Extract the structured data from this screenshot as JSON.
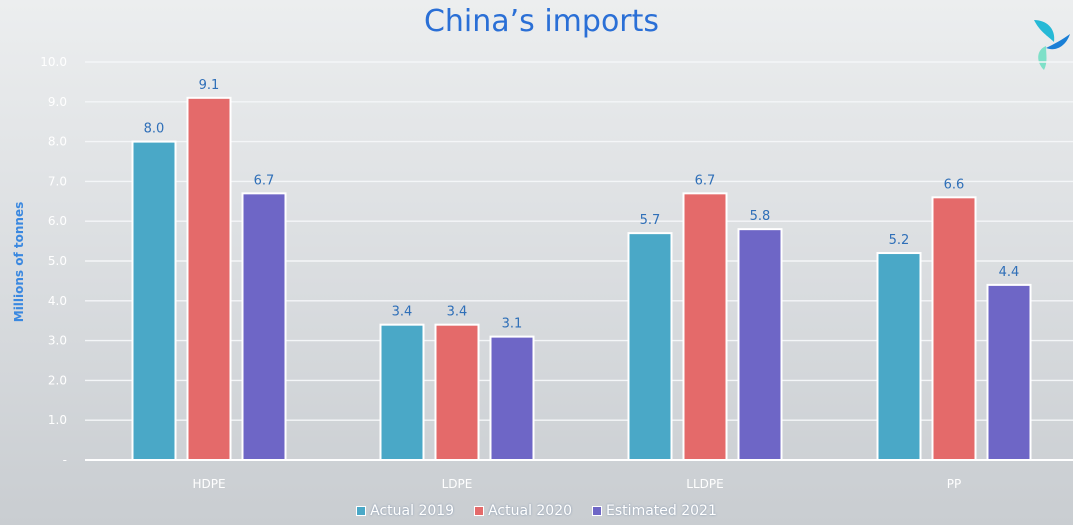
{
  "chart_data": {
    "type": "bar",
    "title": "China’s imports",
    "ylabel": "Millions of tonnes",
    "xlabel": "",
    "categories": [
      "HDPE",
      "LDPE",
      "LLDPE",
      "PP"
    ],
    "ylim": [
      0,
      10
    ],
    "yticks": [
      "-",
      "1.0",
      "2.0",
      "3.0",
      "4.0",
      "5.0",
      "6.0",
      "7.0",
      "8.0",
      "9.0",
      "10.0"
    ],
    "grid": true,
    "legend_position": "bottom",
    "series": [
      {
        "name": "Actual 2019",
        "color": "#4aa8c7",
        "values": [
          8.0,
          3.4,
          5.7,
          5.2
        ],
        "labels": [
          "8.0",
          "3.4",
          "5.7",
          "5.2"
        ]
      },
      {
        "name": "Actual 2020",
        "color": "#e46a6a",
        "values": [
          9.1,
          3.4,
          6.7,
          6.6
        ],
        "labels": [
          "9.1",
          "3.4",
          "6.7",
          "6.6"
        ]
      },
      {
        "name": "Estimated 2021",
        "color": "#6e66c6",
        "values": [
          6.7,
          3.1,
          5.8,
          4.4
        ],
        "labels": [
          "6.7",
          "3.1",
          "5.8",
          "4.4"
        ]
      }
    ]
  },
  "logo": {
    "name": "logo-icon",
    "colors": [
      "#26b9d6",
      "#1a7fd6",
      "#7ee0c8"
    ]
  }
}
